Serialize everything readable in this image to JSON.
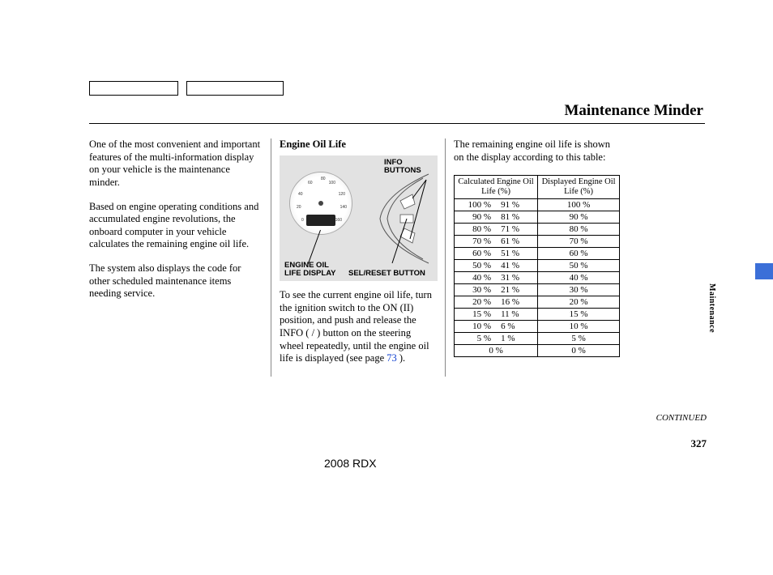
{
  "page_title": "Maintenance Minder",
  "col1": {
    "p1": "One of the most convenient and important features of the multi-information display on your vehicle is the maintenance minder.",
    "p2": "Based on engine operating conditions and accumulated engine revolutions, the onboard computer in your vehicle calculates the remaining engine oil life.",
    "p3": "The system also displays the code for other scheduled maintenance items needing service."
  },
  "col2": {
    "subhead": "Engine Oil Life",
    "label_info": "INFO BUTTONS",
    "label_sel": "SEL/RESET BUTTON",
    "label_eol": "ENGINE OIL LIFE DISPLAY",
    "gauge_numbers": [
      "0",
      "20",
      "40",
      "60",
      "80",
      "100",
      "120",
      "140",
      "160"
    ],
    "p_a": "To see the current engine oil life, turn the ignition switch to the ON (II) position, and push and release the INFO (     /     ) button on the steering wheel repeatedly, until the engine oil life is displayed (see page",
    "link": "73",
    "p_b": " )."
  },
  "col3": {
    "intro": "The remaining engine oil life is shown on the display according to this table:",
    "table": {
      "head1": "Calculated Engine Oil Life (%)",
      "head2": "Displayed Engine Oil Life (%)",
      "rows": [
        {
          "lo": "100 %",
          "hi": "91 %",
          "disp": "100 %"
        },
        {
          "lo": "90 %",
          "hi": "81 %",
          "disp": "90 %"
        },
        {
          "lo": "80 %",
          "hi": "71 %",
          "disp": "80 %"
        },
        {
          "lo": "70 %",
          "hi": "61 %",
          "disp": "70 %"
        },
        {
          "lo": "60 %",
          "hi": "51 %",
          "disp": "60 %"
        },
        {
          "lo": "50 %",
          "hi": "41 %",
          "disp": "50 %"
        },
        {
          "lo": "40 %",
          "hi": "31 %",
          "disp": "40 %"
        },
        {
          "lo": "30 %",
          "hi": "21 %",
          "disp": "30 %"
        },
        {
          "lo": "20 %",
          "hi": "16 %",
          "disp": "20 %"
        },
        {
          "lo": "15 %",
          "hi": "11 %",
          "disp": "15 %"
        },
        {
          "lo": "10 %",
          "hi": "6 %",
          "disp": "10 %"
        },
        {
          "lo": "5 %",
          "hi": "1 %",
          "disp": "5 %"
        },
        {
          "lo": "0 %",
          "hi": "",
          "disp": "0 %"
        }
      ]
    }
  },
  "side_label": "Maintenance",
  "continued": "CONTINUED",
  "page_number": "327",
  "model": "2008  RDX",
  "colors": {
    "diagram_bg": "#e2e2e2",
    "tab": "#3b6fd8",
    "link": "#1040d0"
  }
}
